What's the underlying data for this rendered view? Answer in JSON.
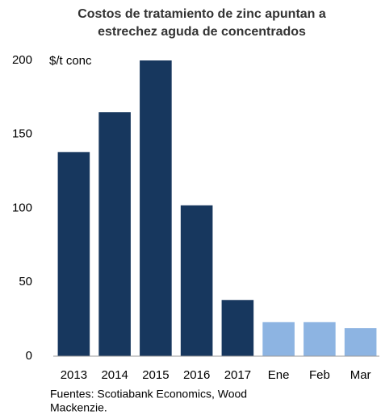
{
  "chart_data": {
    "type": "bar",
    "title": [
      "Costos de tratamiento de zinc apuntan a",
      "estrechez aguda de concentrados"
    ],
    "y_label": "$/t conc",
    "categories": [
      "2013",
      "2014",
      "2015",
      "2016",
      "2017",
      "Ene",
      "Feb",
      "Mar"
    ],
    "values": [
      138,
      165,
      200,
      102,
      38,
      23,
      23,
      19
    ],
    "colors": [
      "#17375e",
      "#17375e",
      "#17375e",
      "#17375e",
      "#17375e",
      "#8db4e2",
      "#8db4e2",
      "#8db4e2"
    ],
    "ylim": [
      0,
      200
    ],
    "yticks": [
      0,
      50,
      100,
      150,
      200
    ],
    "grid": false,
    "source": [
      "Fuentes: Scotiabank Economics, Wood",
      "Mackenzie."
    ]
  }
}
